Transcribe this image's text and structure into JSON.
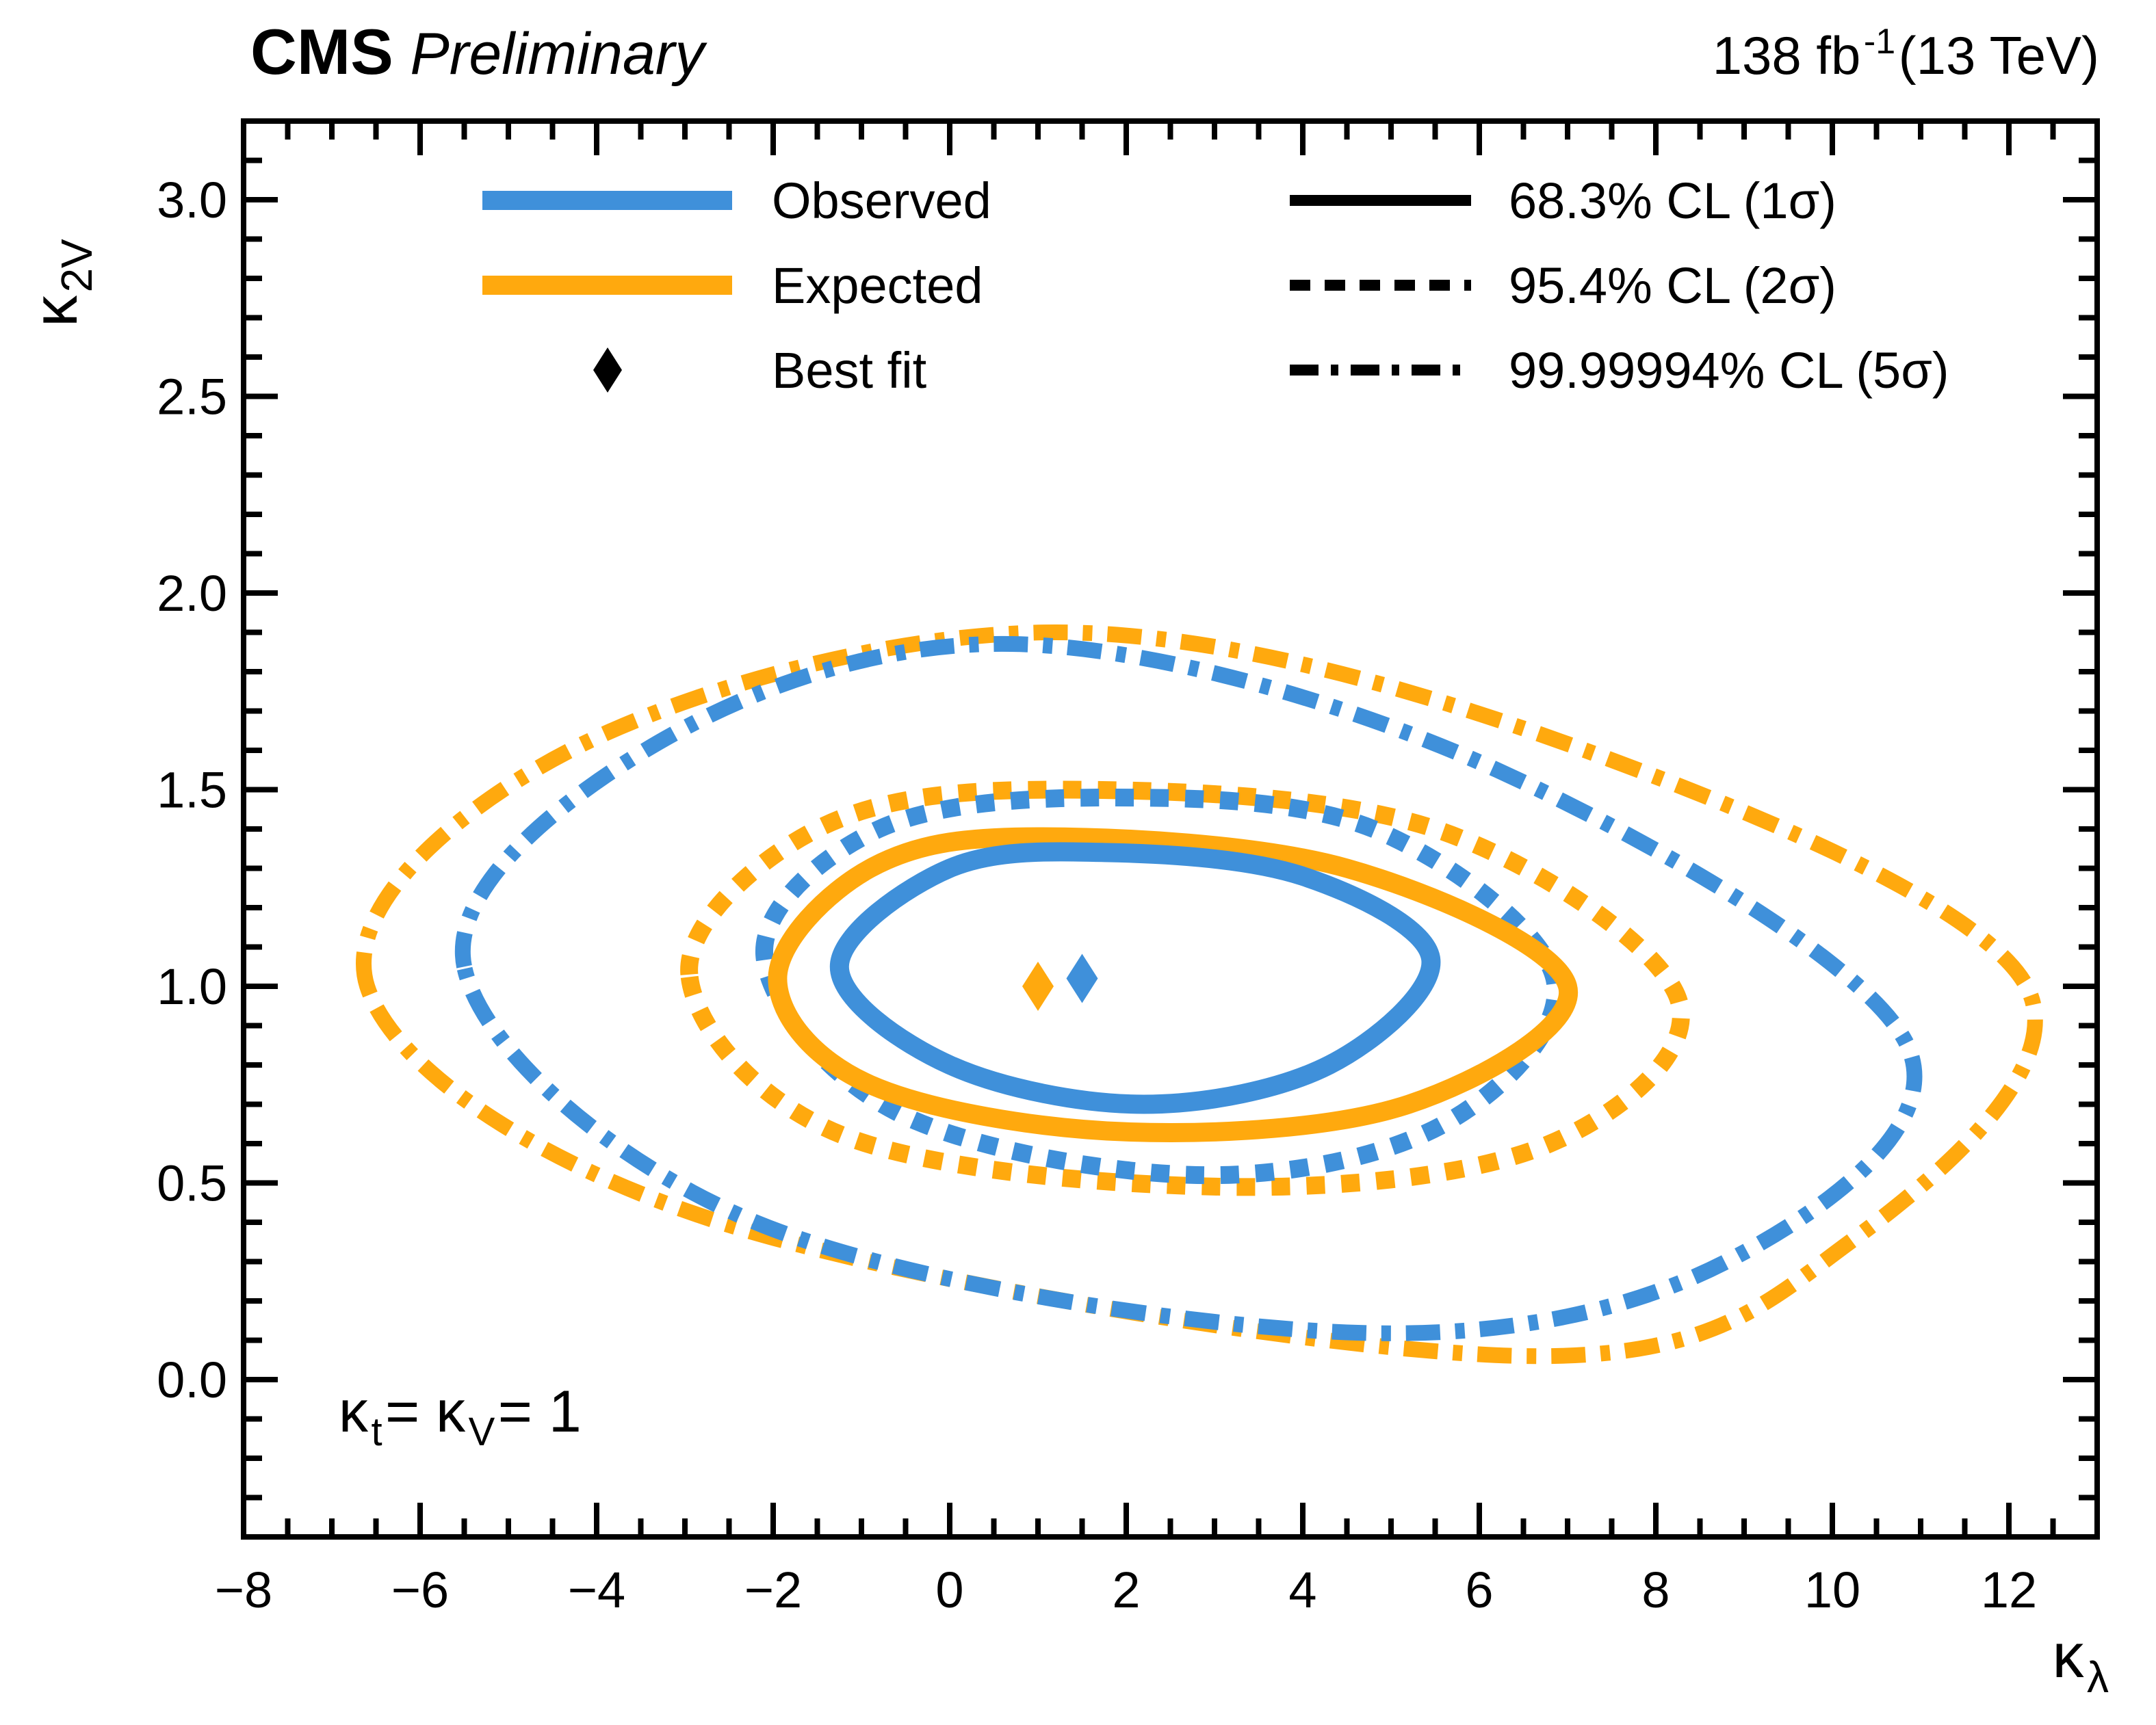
{
  "header": {
    "experiment": "CMS",
    "status": "Preliminary",
    "lumi": {
      "value": "138 fb",
      "exp": "-1",
      "suffix": " (13 TeV)"
    }
  },
  "axes": {
    "x": {
      "title_kappa": "κ",
      "title_sub": "λ",
      "min": -8,
      "max": 13,
      "major_step": 2,
      "minor_step": 0.5,
      "tick_values": [
        -8,
        -6,
        -4,
        -2,
        0,
        2,
        4,
        6,
        8,
        10,
        12
      ],
      "tick_labels": [
        "−8",
        "−6",
        "−4",
        "−2",
        "0",
        "2",
        "4",
        "6",
        "8",
        "10",
        "12"
      ]
    },
    "y": {
      "title_kappa": "κ",
      "title_sub": "2V",
      "min": -0.4,
      "max": 3.2,
      "major_step": 0.5,
      "minor_step": 0.1,
      "tick_values": [
        3.0,
        2.5,
        2.0,
        1.5,
        1.0,
        0.5,
        0.0
      ],
      "tick_labels": [
        "3.0",
        "2.5",
        "2.0",
        "1.5",
        "1.0",
        "0.5",
        "0.0"
      ]
    }
  },
  "legend": {
    "series": [
      {
        "label": "Observed",
        "color": "#3F90DA",
        "sample": "line"
      },
      {
        "label": "Expected",
        "color": "#FFA90E",
        "sample": "line"
      },
      {
        "label": "Best fit",
        "color": "#000000",
        "sample": "diamond"
      }
    ],
    "levels": [
      {
        "label": "68.3% CL (1σ)",
        "style": "solid"
      },
      {
        "label": "95.4% CL (2σ)",
        "style": "dashed"
      },
      {
        "label": "99.99994% CL (5σ)",
        "style": "dashdot"
      }
    ]
  },
  "annotation": {
    "parts": [
      "κ",
      "t",
      " = ",
      "κ",
      "V",
      " = 1"
    ]
  },
  "colors": {
    "observed": "#3F90DA",
    "expected": "#FFA90E",
    "frame": "#000000"
  },
  "chart_data": {
    "type": "contour",
    "subtype": "confidence-level-contours",
    "xlabel": "κ_λ",
    "ylabel": "κ_2V",
    "xlim": [
      -8,
      13
    ],
    "ylim": [
      -0.4,
      3.2
    ],
    "grid": false,
    "constraint_text": "κ_t = κ_V = 1",
    "luminosity_text": "138 fb⁻¹ (13 TeV)",
    "confidence_levels": [
      "68.3% CL (1σ)",
      "95.4% CL (2σ)",
      "99.99994% CL (5σ)"
    ],
    "best_fit": [
      {
        "series": "Expected",
        "x": 1.0,
        "y": 1.0,
        "color": "#FFA90E"
      },
      {
        "series": "Observed",
        "x": 1.5,
        "y": 1.02,
        "color": "#3F90DA"
      }
    ],
    "contours": [
      {
        "series": "Expected",
        "level": "99.99994% CL (5σ)",
        "style": "dashdot",
        "color": "#FFA90E",
        "points": [
          [
            -6.6,
            1.0
          ],
          [
            -4.3,
            1.6
          ],
          [
            1.2,
            1.9
          ],
          [
            7.2,
            1.6
          ],
          [
            12.2,
            1.0
          ],
          [
            10.2,
            0.35
          ],
          [
            6.5,
            0.06
          ],
          [
            -2.6,
            0.4
          ]
        ]
      },
      {
        "series": "Observed",
        "level": "99.99994% CL (5σ)",
        "style": "dashdot",
        "color": "#3F90DA",
        "points": [
          [
            -5.5,
            1.05
          ],
          [
            -3.3,
            1.62
          ],
          [
            0.8,
            1.87
          ],
          [
            6.2,
            1.55
          ],
          [
            10.85,
            0.85
          ],
          [
            8.8,
            0.3
          ],
          [
            4.5,
            0.12
          ],
          [
            -2.2,
            0.4
          ]
        ]
      },
      {
        "series": "Expected",
        "level": "95.4% CL (2σ)",
        "style": "dashed",
        "color": "#FFA90E",
        "points": [
          [
            -2.95,
            1.03
          ],
          [
            -1.5,
            1.4
          ],
          [
            1.2,
            1.5
          ],
          [
            5.5,
            1.4
          ],
          [
            8.25,
            0.97
          ],
          [
            6.8,
            0.6
          ],
          [
            3.2,
            0.49
          ],
          [
            -1.2,
            0.62
          ]
        ]
      },
      {
        "series": "Observed",
        "level": "95.4% CL (2σ)",
        "style": "dashed",
        "color": "#3F90DA",
        "points": [
          [
            -2.1,
            1.08
          ],
          [
            -0.8,
            1.4
          ],
          [
            1.8,
            1.48
          ],
          [
            4.8,
            1.4
          ],
          [
            6.85,
            1.02
          ],
          [
            5.6,
            0.65
          ],
          [
            2.8,
            0.52
          ],
          [
            -0.6,
            0.68
          ]
        ]
      },
      {
        "series": "Expected",
        "level": "68.3% CL (1σ)",
        "style": "solid",
        "color": "#FFA90E",
        "points": [
          [
            -1.95,
            1.02
          ],
          [
            -0.9,
            1.3
          ],
          [
            1.0,
            1.38
          ],
          [
            4.5,
            1.3
          ],
          [
            7.0,
            1.0
          ],
          [
            5.2,
            0.7
          ],
          [
            2.0,
            0.63
          ],
          [
            -0.9,
            0.75
          ]
        ]
      },
      {
        "series": "Observed",
        "level": "68.3% CL (1σ)",
        "style": "solid",
        "color": "#3F90DA",
        "points": [
          [
            -1.25,
            1.05
          ],
          [
            0.0,
            1.3
          ],
          [
            1.8,
            1.34
          ],
          [
            4.0,
            1.28
          ],
          [
            5.45,
            1.07
          ],
          [
            4.3,
            0.8
          ],
          [
            2.2,
            0.7
          ],
          [
            0.0,
            0.8
          ]
        ]
      }
    ]
  }
}
